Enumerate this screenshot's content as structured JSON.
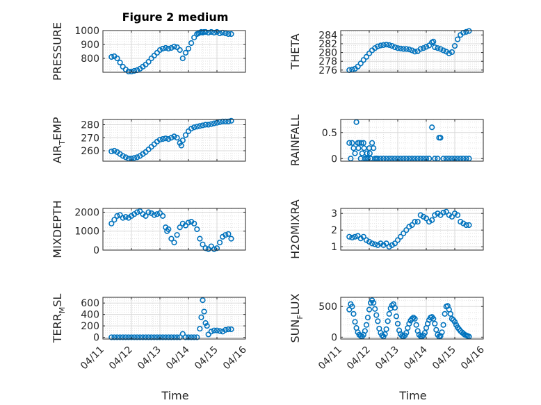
{
  "figure": {
    "title": "Figure 2 medium",
    "x_label": "Time",
    "marker_color": "#0072BD",
    "grid": "major and minor, dotted minor",
    "x_tick_labels": [
      "04/11",
      "04/12",
      "04/13",
      "04/14",
      "04/15",
      "04/16"
    ]
  },
  "chart_data": [
    {
      "type": "scatter",
      "ylabel": "PRESSURE",
      "ylim": [
        700,
        1000
      ],
      "yticks": [
        800,
        900,
        1000
      ],
      "xlim": [
        "04/11",
        "04/16"
      ],
      "x": [
        11.3,
        11.4,
        11.5,
        11.6,
        11.7,
        11.8,
        11.9,
        12.0,
        12.1,
        12.2,
        12.3,
        12.4,
        12.5,
        12.6,
        12.7,
        12.8,
        12.9,
        13.0,
        13.1,
        13.2,
        13.3,
        13.4,
        13.5,
        13.6,
        13.7,
        13.8,
        13.9,
        14.0,
        14.1,
        14.2,
        14.3,
        14.35,
        14.4,
        14.45,
        14.5,
        14.55,
        14.6,
        14.7,
        14.8,
        14.9,
        15.0,
        15.1,
        15.2,
        15.3,
        15.4,
        15.5
      ],
      "y": [
        810,
        815,
        800,
        770,
        740,
        720,
        705,
        705,
        710,
        715,
        725,
        740,
        755,
        775,
        800,
        820,
        840,
        860,
        870,
        875,
        870,
        875,
        885,
        880,
        860,
        800,
        840,
        870,
        910,
        950,
        975,
        980,
        985,
        990,
        985,
        990,
        990,
        985,
        990,
        985,
        990,
        980,
        985,
        980,
        975,
        975
      ]
    },
    {
      "type": "scatter",
      "ylabel": "THETA",
      "ylim": [
        275.5,
        285
      ],
      "yticks": [
        276,
        278,
        280,
        282,
        284
      ],
      "xlim": [
        "04/11",
        "04/16"
      ],
      "x": [
        11.3,
        11.4,
        11.5,
        11.6,
        11.7,
        11.8,
        11.9,
        12.0,
        12.1,
        12.2,
        12.3,
        12.4,
        12.5,
        12.6,
        12.7,
        12.8,
        12.9,
        13.0,
        13.1,
        13.2,
        13.3,
        13.4,
        13.5,
        13.6,
        13.7,
        13.8,
        13.9,
        14.0,
        14.1,
        14.2,
        14.25,
        14.3,
        14.4,
        14.5,
        14.6,
        14.7,
        14.8,
        14.9,
        15.0,
        15.1,
        15.2,
        15.3,
        15.4,
        15.5
      ],
      "y": [
        276,
        276.1,
        276.3,
        276.8,
        277.5,
        278.3,
        279,
        279.8,
        280.5,
        281,
        281.4,
        281.6,
        281.7,
        281.8,
        281.7,
        281.5,
        281.2,
        281,
        280.9,
        280.8,
        280.8,
        280.7,
        280.5,
        280.2,
        280.3,
        280.8,
        281,
        281.3,
        281.6,
        282.3,
        282.5,
        281.2,
        281,
        280.8,
        280.5,
        280.2,
        279.8,
        280.1,
        281.5,
        283,
        284,
        284.5,
        284.7,
        284.9
      ]
    },
    {
      "type": "scatter",
      "ylabel": "AIR_TEMP",
      "ylim": [
        252,
        284
      ],
      "yticks": [
        260,
        270,
        280
      ],
      "xlim": [
        "04/11",
        "04/16"
      ],
      "x": [
        11.3,
        11.4,
        11.5,
        11.6,
        11.7,
        11.8,
        11.9,
        12.0,
        12.1,
        12.2,
        12.3,
        12.4,
        12.5,
        12.6,
        12.7,
        12.8,
        12.9,
        13.0,
        13.1,
        13.2,
        13.3,
        13.4,
        13.5,
        13.6,
        13.7,
        13.75,
        13.8,
        13.9,
        14.0,
        14.1,
        14.2,
        14.3,
        14.4,
        14.5,
        14.6,
        14.7,
        14.8,
        14.9,
        15.0,
        15.1,
        15.2,
        15.3,
        15.4,
        15.5
      ],
      "y": [
        259.5,
        260,
        259,
        257.5,
        256,
        255,
        254,
        254,
        254.5,
        255,
        256,
        257.5,
        259,
        261,
        263,
        265,
        267,
        268.5,
        269,
        269.5,
        269,
        270,
        271,
        270,
        266,
        264,
        268,
        272,
        275,
        277,
        278,
        278.5,
        279,
        279.5,
        280,
        280,
        280.5,
        281,
        281.5,
        282,
        282.5,
        282.5,
        282.5,
        283
      ]
    },
    {
      "type": "scatter",
      "ylabel": "RAINFALL",
      "ylim": [
        -0.05,
        0.75
      ],
      "yticks": [
        0,
        0.5
      ],
      "xlim": [
        "04/11",
        "04/16"
      ],
      "x": [
        11.3,
        11.35,
        11.4,
        11.45,
        11.5,
        11.55,
        11.6,
        11.62,
        11.65,
        11.7,
        11.72,
        11.75,
        11.8,
        11.82,
        11.85,
        11.9,
        11.92,
        11.95,
        12.0,
        12.02,
        12.05,
        12.1,
        12.15,
        12.2,
        12.25,
        12.3,
        12.4,
        12.5,
        12.6,
        12.7,
        12.8,
        12.9,
        13.0,
        13.1,
        13.2,
        13.3,
        13.4,
        13.5,
        13.6,
        13.7,
        13.8,
        13.9,
        14.0,
        14.1,
        14.2,
        14.3,
        14.4,
        14.45,
        14.5,
        14.6,
        14.7,
        14.8,
        14.9,
        15.0,
        15.1,
        15.2,
        15.3,
        15.4,
        15.5
      ],
      "y": [
        0.3,
        0,
        0.3,
        0.2,
        0.1,
        0.7,
        0.3,
        0.2,
        0.3,
        0,
        0.3,
        0.1,
        0.3,
        0.2,
        0,
        0,
        0.1,
        0,
        0.2,
        0.1,
        0,
        0.3,
        0.2,
        0,
        0,
        0,
        0,
        0,
        0,
        0,
        0,
        0,
        0,
        0,
        0,
        0,
        0,
        0,
        0,
        0,
        0,
        0,
        0,
        0,
        0.6,
        0,
        0,
        0.4,
        0.4,
        0,
        0,
        0,
        0,
        0,
        0,
        0,
        0,
        0,
        0
      ]
    },
    {
      "type": "scatter",
      "ylabel": "MIXDEPTH",
      "ylim": [
        0,
        2200
      ],
      "yticks": [
        0,
        1000,
        2000
      ],
      "xlim": [
        "04/11",
        "04/16"
      ],
      "x": [
        11.3,
        11.4,
        11.5,
        11.6,
        11.7,
        11.8,
        11.9,
        12.0,
        12.1,
        12.2,
        12.3,
        12.4,
        12.5,
        12.6,
        12.7,
        12.8,
        12.9,
        13.0,
        13.1,
        13.2,
        13.25,
        13.3,
        13.4,
        13.5,
        13.6,
        13.7,
        13.8,
        13.9,
        14.0,
        14.1,
        14.2,
        14.3,
        14.4,
        14.5,
        14.6,
        14.7,
        14.8,
        14.9,
        15.0,
        15.1,
        15.2,
        15.3,
        15.4,
        15.5
      ],
      "y": [
        1400,
        1600,
        1800,
        1850,
        1700,
        1750,
        1700,
        1800,
        1900,
        2000,
        2050,
        1900,
        1800,
        2000,
        1950,
        1850,
        1900,
        1950,
        1800,
        1200,
        1000,
        1100,
        600,
        400,
        800,
        1200,
        1400,
        1300,
        1450,
        1500,
        1400,
        1100,
        600,
        300,
        100,
        50,
        200,
        50,
        100,
        400,
        700,
        800,
        850,
        600
      ]
    },
    {
      "type": "scatter",
      "ylabel": "H2OMIXRA",
      "ylim": [
        0.8,
        3.3
      ],
      "yticks": [
        1,
        2,
        3
      ],
      "xlim": [
        "04/11",
        "04/16"
      ],
      "x": [
        11.3,
        11.4,
        11.5,
        11.6,
        11.7,
        11.8,
        11.9,
        12.0,
        12.1,
        12.2,
        12.3,
        12.4,
        12.5,
        12.6,
        12.7,
        12.8,
        12.9,
        13.0,
        13.1,
        13.2,
        13.3,
        13.4,
        13.5,
        13.6,
        13.7,
        13.8,
        13.9,
        14.0,
        14.1,
        14.2,
        14.3,
        14.4,
        14.5,
        14.6,
        14.7,
        14.8,
        14.9,
        15.0,
        15.1,
        15.2,
        15.3,
        15.4,
        15.5
      ],
      "y": [
        1.6,
        1.55,
        1.6,
        1.65,
        1.5,
        1.6,
        1.4,
        1.3,
        1.2,
        1.15,
        1.1,
        1.2,
        1.1,
        1.2,
        1.0,
        1.1,
        1.2,
        1.4,
        1.6,
        1.8,
        2.0,
        2.2,
        2.3,
        2.5,
        2.5,
        2.9,
        2.8,
        2.7,
        2.5,
        2.6,
        2.9,
        3.0,
        2.9,
        3.05,
        3.1,
        2.9,
        2.8,
        3.0,
        2.9,
        2.5,
        2.4,
        2.3,
        2.3
      ]
    },
    {
      "type": "scatter",
      "ylabel": "TERR_MSL",
      "ylim": [
        -30,
        700
      ],
      "yticks": [
        0,
        200,
        400,
        600
      ],
      "xlim": [
        "04/11",
        "04/16"
      ],
      "x": [
        11.3,
        11.4,
        11.5,
        11.6,
        11.7,
        11.8,
        11.9,
        12.0,
        12.1,
        12.2,
        12.3,
        12.4,
        12.5,
        12.6,
        12.7,
        12.8,
        12.9,
        13.0,
        13.1,
        13.2,
        13.3,
        13.4,
        13.5,
        13.6,
        13.7,
        13.8,
        13.9,
        14.0,
        14.1,
        14.2,
        14.3,
        14.4,
        14.45,
        14.5,
        14.55,
        14.6,
        14.65,
        14.7,
        14.8,
        14.9,
        15.0,
        15.1,
        15.2,
        15.3,
        15.4,
        15.5
      ],
      "y": [
        0,
        0,
        0,
        0,
        0,
        0,
        0,
        0,
        0,
        0,
        0,
        0,
        0,
        0,
        0,
        0,
        0,
        0,
        0,
        0,
        0,
        0,
        0,
        0,
        0,
        60,
        0,
        0,
        0,
        0,
        0,
        150,
        350,
        650,
        450,
        250,
        200,
        50,
        100,
        120,
        120,
        110,
        100,
        130,
        140,
        140
      ]
    },
    {
      "type": "scatter",
      "ylabel": "SUN_FLUX",
      "ylim": [
        -30,
        650
      ],
      "yticks": [
        0,
        500
      ],
      "xlim": [
        "04/11",
        "04/16"
      ],
      "x": [
        11.3,
        11.35,
        11.4,
        11.45,
        11.5,
        11.55,
        11.6,
        11.65,
        11.7,
        11.75,
        11.8,
        11.85,
        11.9,
        11.95,
        12.0,
        12.05,
        12.1,
        12.15,
        12.2,
        12.25,
        12.3,
        12.35,
        12.4,
        12.45,
        12.5,
        12.55,
        12.6,
        12.65,
        12.7,
        12.75,
        12.8,
        12.85,
        12.9,
        12.95,
        13.0,
        13.05,
        13.1,
        13.15,
        13.2,
        13.25,
        13.3,
        13.35,
        13.4,
        13.45,
        13.5,
        13.55,
        13.6,
        13.65,
        13.7,
        13.75,
        13.8,
        13.85,
        13.9,
        13.95,
        14.0,
        14.05,
        14.1,
        14.15,
        14.2,
        14.25,
        14.3,
        14.35,
        14.4,
        14.45,
        14.5,
        14.55,
        14.6,
        14.65,
        14.7,
        14.75,
        14.8,
        14.85,
        14.9,
        14.95,
        15.0,
        15.05,
        15.1,
        15.15,
        15.2,
        15.25,
        15.3,
        15.35,
        15.4,
        15.45,
        15.5
      ],
      "y": [
        450,
        540,
        500,
        380,
        250,
        150,
        80,
        40,
        20,
        10,
        40,
        100,
        200,
        320,
        450,
        560,
        600,
        560,
        460,
        360,
        260,
        140,
        70,
        30,
        10,
        50,
        130,
        260,
        380,
        470,
        520,
        540,
        480,
        340,
        220,
        110,
        50,
        20,
        10,
        30,
        70,
        150,
        220,
        270,
        300,
        320,
        300,
        200,
        100,
        40,
        15,
        10,
        30,
        70,
        150,
        220,
        280,
        320,
        330,
        300,
        220,
        120,
        40,
        10,
        20,
        80,
        200,
        380,
        500,
        510,
        450,
        380,
        300,
        280,
        250,
        200,
        160,
        130,
        100,
        80,
        60,
        40,
        30,
        20,
        10
      ]
    }
  ]
}
